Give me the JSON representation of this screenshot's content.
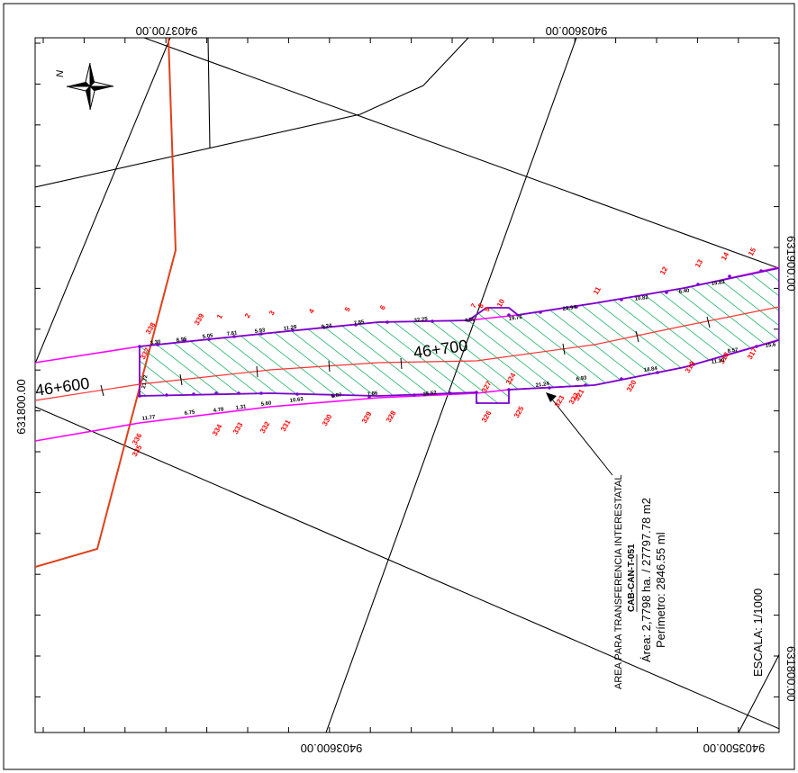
{
  "coords": {
    "top_left": "9403700.00",
    "top_right": "9403600.00",
    "bottom_left": "9403600.00",
    "bottom_right": "9403500.00",
    "left": "631800.00",
    "right_top": "631900.00",
    "right_bottom": "631800.00"
  },
  "north_letter": "N",
  "stations": {
    "a": "46+600",
    "b": "46+700"
  },
  "annotation": {
    "line1": "AREA PARA TRANSFERENCIA INTERESTATAL",
    "line2": "CAB-CAN-T-051",
    "line3": "Área: 2,7798 ha. / 27797.78 m2",
    "line4": "Perímetro: 2846.55 ml"
  },
  "scale_text": "ESCALA: 1/1000",
  "vertex_labels_top": [
    "338",
    "339",
    "1",
    "2",
    "3",
    "4",
    "5",
    "6",
    "7",
    "8",
    "9",
    "10",
    "11",
    "12",
    "13",
    "14",
    "15"
  ],
  "vertex_labels_bottom": [
    "337",
    "336",
    "335",
    "334",
    "333",
    "332",
    "331",
    "330",
    "329",
    "328",
    "327",
    "326",
    "325",
    "324",
    "323",
    "322",
    "321",
    "320",
    "319",
    "318",
    "317"
  ],
  "dist_top": [
    "3.30",
    "8.95",
    "5.05",
    "7.61",
    "5.93",
    "11.28",
    "9.24",
    "7.85",
    "32.25",
    "4.85",
    "19.76",
    "23.94",
    "10.82",
    "6.40",
    "15.83"
  ],
  "dist_bottom": [
    "11.77",
    "6.75",
    "4.78",
    "1.31",
    "5.60",
    "10.63",
    "6.87",
    "7.86",
    "25.52",
    "21.24",
    "6.93",
    "14.84",
    "11.30",
    "8.57",
    "15.6"
  ],
  "dist_left": "21.72",
  "colors": {
    "corridor_edge": "#ff00ff",
    "polygon_outline": "#7a00cc",
    "hatch": "#00a651",
    "centerline": "#ff3333",
    "road": "#e0401a",
    "vertex_label": "#ff0000"
  }
}
